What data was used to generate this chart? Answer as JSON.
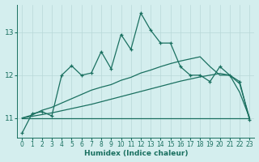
{
  "xlabel": "Humidex (Indice chaleur)",
  "bg_color": "#d4eeee",
  "grid_color": "#b8d8d8",
  "line_color": "#1a7060",
  "xlim": [
    -0.5,
    23.5
  ],
  "ylim": [
    10.55,
    13.65
  ],
  "yticks": [
    11,
    12,
    13
  ],
  "xticks": [
    0,
    1,
    2,
    3,
    4,
    5,
    6,
    7,
    8,
    9,
    10,
    11,
    12,
    13,
    14,
    15,
    16,
    17,
    18,
    19,
    20,
    21,
    22,
    23
  ],
  "line1_x": [
    0,
    1,
    2,
    3,
    4,
    5,
    6,
    7,
    8,
    9,
    10,
    11,
    12,
    13,
    14,
    15,
    16,
    17,
    18,
    19,
    20,
    21,
    22,
    23
  ],
  "line1_y": [
    10.65,
    11.1,
    11.15,
    11.05,
    12.0,
    12.22,
    12.0,
    12.05,
    12.55,
    12.15,
    12.95,
    12.6,
    13.45,
    13.05,
    12.75,
    12.75,
    12.2,
    12.0,
    12.0,
    11.85,
    12.2,
    12.0,
    11.85,
    10.95
  ],
  "line2_x": [
    0,
    1,
    2,
    3,
    4,
    5,
    6,
    7,
    8,
    9,
    10,
    11,
    12,
    13,
    14,
    15,
    16,
    17,
    18,
    19,
    20,
    21,
    22,
    23
  ],
  "line2_y": [
    11.0,
    11.0,
    11.0,
    11.0,
    11.0,
    11.0,
    11.0,
    11.0,
    11.0,
    11.0,
    11.0,
    11.0,
    11.0,
    11.0,
    11.0,
    11.0,
    11.0,
    11.0,
    11.0,
    11.0,
    11.0,
    11.0,
    11.0,
    11.0
  ],
  "line3_x": [
    0,
    1,
    2,
    3,
    4,
    5,
    6,
    7,
    8,
    9,
    10,
    11,
    12,
    13,
    14,
    15,
    16,
    17,
    18,
    19,
    20,
    21,
    22,
    23
  ],
  "line3_y": [
    11.0,
    11.04,
    11.08,
    11.12,
    11.17,
    11.22,
    11.27,
    11.32,
    11.38,
    11.44,
    11.5,
    11.56,
    11.62,
    11.68,
    11.74,
    11.8,
    11.86,
    11.91,
    11.96,
    12.0,
    12.04,
    12.0,
    11.6,
    11.0
  ],
  "line4_x": [
    0,
    1,
    2,
    3,
    4,
    5,
    6,
    7,
    8,
    9,
    10,
    11,
    12,
    13,
    14,
    15,
    16,
    17,
    18,
    19,
    20,
    21,
    22,
    23
  ],
  "line4_y": [
    11.0,
    11.07,
    11.18,
    11.25,
    11.35,
    11.45,
    11.55,
    11.65,
    11.72,
    11.78,
    11.88,
    11.95,
    12.05,
    12.12,
    12.2,
    12.27,
    12.33,
    12.38,
    12.43,
    12.2,
    12.0,
    12.0,
    11.8,
    11.0
  ]
}
